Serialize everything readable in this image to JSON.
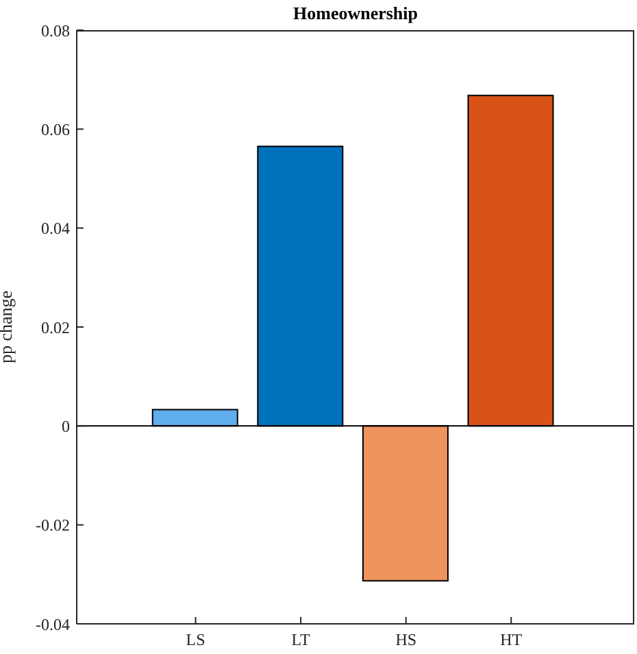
{
  "chart_data": {
    "type": "bar",
    "title": "Homeownership",
    "ylabel": "pp change",
    "categories": [
      "LS",
      "LT",
      "HS",
      "HT"
    ],
    "values": [
      0.0033,
      0.0565,
      -0.0313,
      0.0668
    ],
    "colors": [
      "#5eaeee",
      "#0072bd",
      "#ee935e",
      "#d95319"
    ],
    "ylim": [
      -0.04,
      0.08
    ],
    "yticks": [
      -0.04,
      -0.02,
      0,
      0.02,
      0.04,
      0.06,
      0.08
    ],
    "ref_lines": [
      {
        "axis": "y",
        "value": 0,
        "color": "#000000"
      }
    ]
  }
}
